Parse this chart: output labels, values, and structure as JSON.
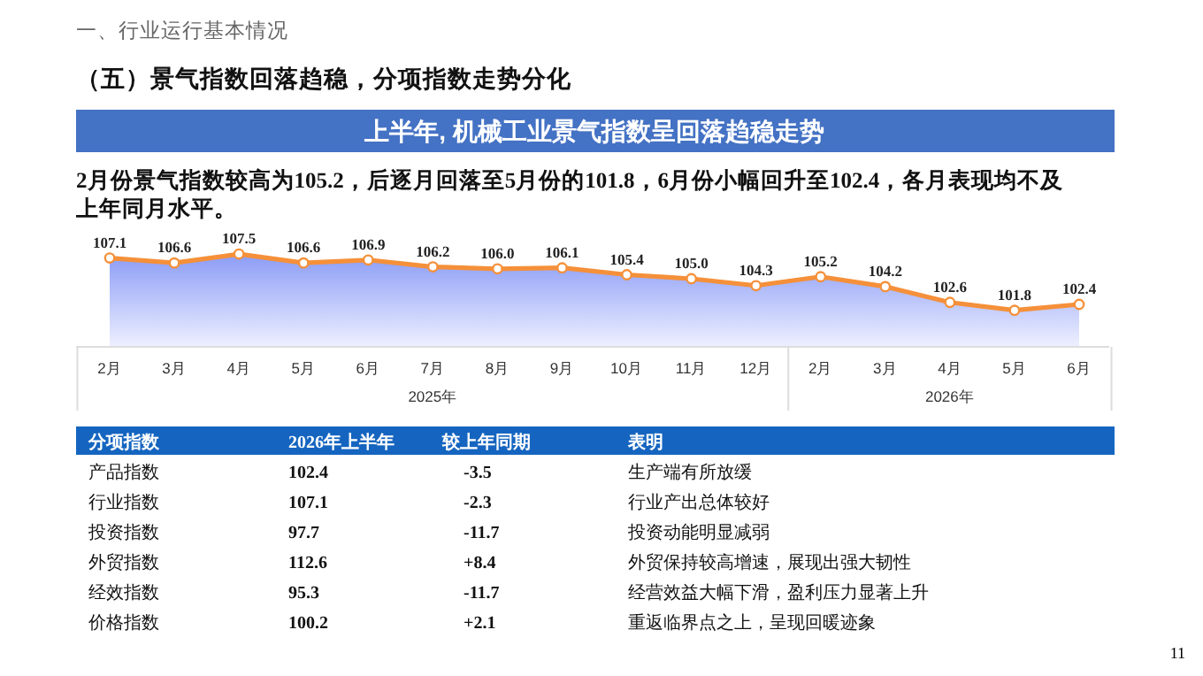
{
  "chart_data": [
    {
      "type": "area",
      "title": "上半年, 机械工业景气指数呈回落趋稳走势",
      "subtitle": "2月份景气指数较高为105.2，后逐月回落至5月份的101.8，6月份小幅回升至102.4，各月表现均不及上年同月水平。",
      "annotations": [
        "一、行业运行基本情况",
        "（五）景气指数回落趋稳，分项指数走势分化",
        "2025年",
        "2026年"
      ],
      "categories": [
        "2月",
        "3月",
        "4月",
        "5月",
        "6月",
        "7月",
        "8月",
        "9月",
        "10月",
        "11月",
        "12月",
        "2月",
        "3月",
        "4月",
        "5月",
        "6月"
      ],
      "series": [
        {
          "color": "#f5903a",
          "values": [
            107.1,
            106.6,
            107.5,
            106.6,
            106.9,
            106.2,
            106.0,
            106.1,
            105.4,
            105.0,
            104.3,
            105.2,
            104.2,
            102.6,
            101.8,
            102.4
          ],
          "value_labels": [
            "107.1",
            "106.6",
            "107.5",
            "106.6",
            "106.9",
            "106.2",
            "106.0",
            "106.1",
            "105.4",
            "105.0",
            "104.3",
            "105.2",
            "104.2",
            "102.6",
            "101.8",
            "102.4"
          ]
        }
      ],
      "tick_labels": "x",
      "marker": "circle"
    },
    {
      "type": "other",
      "annotations": [
        "分项指数",
        "2026年上半年",
        "较上年同期",
        "表明",
        "产品指数",
        "102.4",
        "-3.5",
        "生产端有所放缓",
        "行业指数",
        "107.1",
        "-2.3",
        "行业产出总体较好",
        "投资指数",
        "97.7",
        "-11.7",
        "投资动能明显减弱",
        "外贸指数",
        "112.6",
        "+8.4",
        "外贸保持较高增速，展现出强大韧性",
        "经效指数",
        "95.3",
        "-11.7",
        "经营效益大幅下滑，盈利压力显著上升",
        "价格指数",
        "100.2",
        "+2.1",
        "重返临界点之上，呈现回暖迹象",
        "11"
      ]
    }
  ]
}
